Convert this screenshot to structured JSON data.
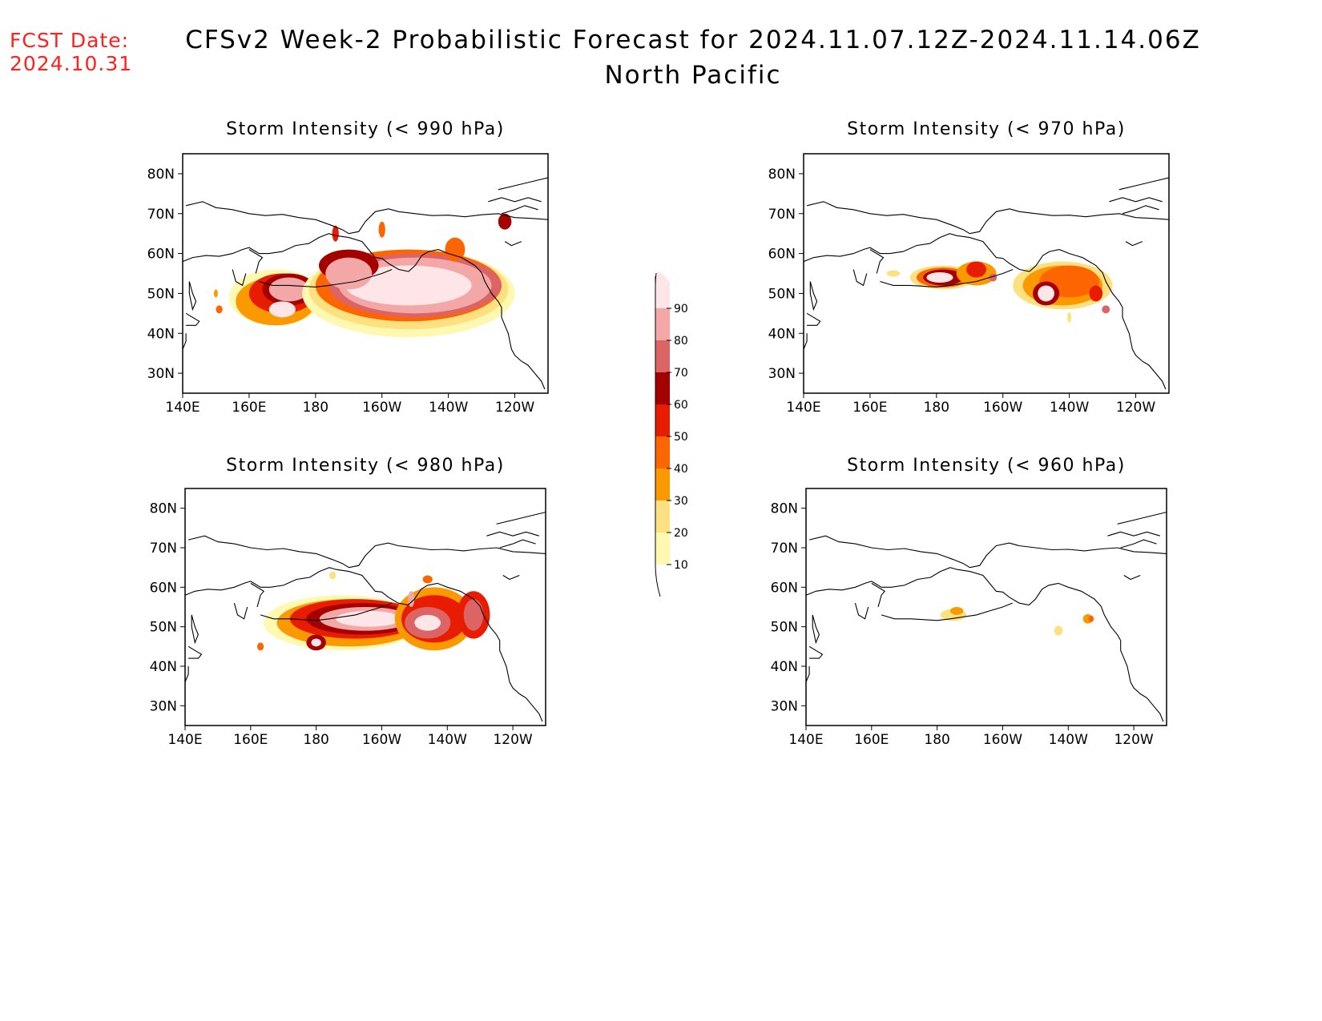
{
  "header": {
    "fcst_label": "FCST Date:",
    "fcst_date": "2024.10.31",
    "title_line1": "CFSv2 Week-2 Probabilistic Forecast for 2024.11.07.12Z-2024.11.14.06Z",
    "title_line2": "North Pacific"
  },
  "panels": [
    {
      "id": "p990",
      "title": "Storm Intensity (< 990 hPa)"
    },
    {
      "id": "p970",
      "title": "Storm Intensity (< 970 hPa)"
    },
    {
      "id": "p980",
      "title": "Storm Intensity (< 980 hPa)"
    },
    {
      "id": "p960",
      "title": "Storm Intensity (< 960 hPa)"
    }
  ],
  "axes": {
    "lat_ticks": [
      "80N",
      "70N",
      "60N",
      "50N",
      "40N",
      "30N"
    ],
    "lat_values": [
      80,
      70,
      60,
      50,
      40,
      30
    ],
    "lon_ticks": [
      "140E",
      "160E",
      "180",
      "160W",
      "140W",
      "120W"
    ],
    "lon_values": [
      140,
      160,
      180,
      200,
      220,
      240
    ],
    "lat_range": [
      25,
      85
    ],
    "lon_range": [
      140,
      250
    ]
  },
  "colorbar": {
    "levels": [
      "10",
      "20",
      "30",
      "40",
      "50",
      "60",
      "70",
      "80",
      "90"
    ],
    "colors": [
      "#fff8b0",
      "#fde080",
      "#fb9a00",
      "#fd6500",
      "#e81c00",
      "#a50000",
      "#dc6464",
      "#f3a7a7",
      "#fde5e8"
    ]
  }
}
